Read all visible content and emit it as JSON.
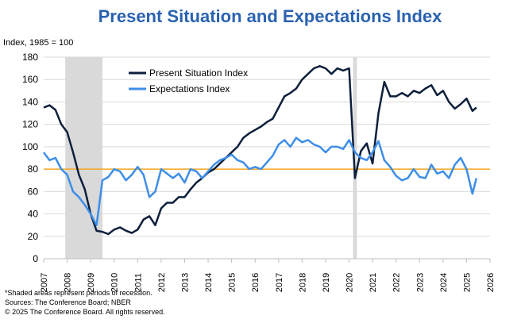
{
  "chart_data": {
    "type": "line",
    "title": "Present Situation and Expectations Index",
    "y_axis_label": "Index, 1985 = 100",
    "x": [
      2007,
      2007.25,
      2007.5,
      2007.75,
      2008,
      2008.25,
      2008.5,
      2008.75,
      2009,
      2009.25,
      2009.5,
      2009.75,
      2010,
      2010.25,
      2010.5,
      2010.75,
      2011,
      2011.25,
      2011.5,
      2011.75,
      2012,
      2012.25,
      2012.5,
      2012.75,
      2013,
      2013.25,
      2013.5,
      2013.75,
      2014,
      2014.25,
      2014.5,
      2014.75,
      2015,
      2015.25,
      2015.5,
      2015.75,
      2016,
      2016.25,
      2016.5,
      2016.75,
      2017,
      2017.25,
      2017.5,
      2017.75,
      2018,
      2018.25,
      2018.5,
      2018.75,
      2019,
      2019.25,
      2019.5,
      2019.75,
      2020,
      2020.25,
      2020.5,
      2020.75,
      2021,
      2021.25,
      2021.5,
      2021.75,
      2022,
      2022.25,
      2022.5,
      2022.75,
      2023,
      2023.25,
      2023.5,
      2023.75,
      2024,
      2024.25,
      2024.5,
      2024.75,
      2025,
      2025.25,
      2025.42
    ],
    "series": [
      {
        "name": "Present Situation Index",
        "color": "#0d1f3c",
        "values": [
          135,
          137,
          133,
          120,
          113,
          95,
          75,
          62,
          40,
          25,
          24,
          22,
          26,
          28,
          25,
          23,
          26,
          35,
          38,
          30,
          45,
          50,
          50,
          55,
          55,
          62,
          68,
          72,
          77,
          80,
          85,
          90,
          95,
          100,
          108,
          112,
          115,
          118,
          122,
          125,
          135,
          145,
          148,
          152,
          160,
          165,
          170,
          172,
          170,
          165,
          170,
          168,
          170,
          72,
          96,
          103,
          85,
          130,
          158,
          145,
          145,
          148,
          145,
          150,
          148,
          152,
          155,
          146,
          150,
          140,
          134,
          138,
          143,
          132,
          135
        ]
      },
      {
        "name": "Expectations Index",
        "color": "#3d8ee8",
        "values": [
          95,
          88,
          90,
          80,
          75,
          60,
          55,
          48,
          40,
          30,
          70,
          73,
          80,
          78,
          70,
          75,
          82,
          75,
          55,
          60,
          80,
          76,
          72,
          76,
          68,
          80,
          78,
          72,
          78,
          84,
          88,
          90,
          93,
          88,
          86,
          80,
          82,
          80,
          86,
          92,
          102,
          106,
          100,
          108,
          104,
          106,
          102,
          100,
          95,
          100,
          100,
          98,
          106,
          95,
          90,
          88,
          95,
          105,
          88,
          82,
          74,
          70,
          72,
          80,
          73,
          72,
          84,
          76,
          78,
          72,
          84,
          90,
          80,
          58,
          72
        ]
      }
    ],
    "xlim": [
      2007,
      2026
    ],
    "xticks": [
      2007,
      2008,
      2009,
      2010,
      2011,
      2012,
      2013,
      2014,
      2015,
      2016,
      2017,
      2018,
      2019,
      2020,
      2021,
      2022,
      2023,
      2024,
      2025,
      2026
    ],
    "ylim": [
      0,
      180
    ],
    "yticks": [
      0,
      20,
      40,
      60,
      80,
      100,
      120,
      140,
      160,
      180
    ],
    "grid": true,
    "legend": "upper-center",
    "recessions": [
      [
        2007.92,
        2009.5
      ],
      [
        2020.17,
        2020.33
      ]
    ],
    "recession_color": "#d9d9d9",
    "reference_line": 80,
    "reference_color": "#f5a623",
    "notes": [
      "*Shaded areas represent periods of recession.",
      "Sources:  The Conference Board;  NBER",
      "© 2025 The Conference Board. All rights reserved."
    ]
  }
}
